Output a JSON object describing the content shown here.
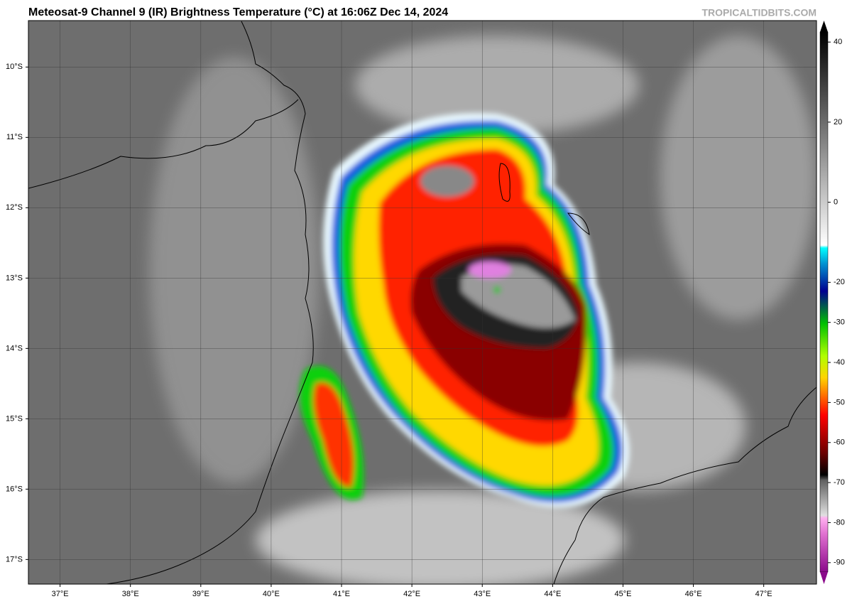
{
  "title": "Meteosat-9 Channel 9 (IR) Brightness Temperature (°C) at 16:06Z Dec 14, 2024",
  "watermark": "TROPICALTIDBITS.COM",
  "map": {
    "xlim": [
      36.55,
      47.75
    ],
    "ylim": [
      -17.35,
      -9.34
    ],
    "grid": true,
    "xticks": [
      {
        "value": 37,
        "label": "37°E"
      },
      {
        "value": 38,
        "label": "38°E"
      },
      {
        "value": 39,
        "label": "39°E"
      },
      {
        "value": 40,
        "label": "40°E"
      },
      {
        "value": 41,
        "label": "41°E"
      },
      {
        "value": 42,
        "label": "42°E"
      },
      {
        "value": 43,
        "label": "43°E"
      },
      {
        "value": 44,
        "label": "44°E"
      },
      {
        "value": 45,
        "label": "45°E"
      },
      {
        "value": 46,
        "label": "46°E"
      },
      {
        "value": 47,
        "label": "47°E"
      }
    ],
    "yticks": [
      {
        "value": -10,
        "label": "10°S"
      },
      {
        "value": -11,
        "label": "11°S"
      },
      {
        "value": -12,
        "label": "12°S"
      },
      {
        "value": -13,
        "label": "13°S"
      },
      {
        "value": -14,
        "label": "14°S"
      },
      {
        "value": -15,
        "label": "15°S"
      },
      {
        "value": -16,
        "label": "16°S"
      },
      {
        "value": -17,
        "label": "17°S"
      }
    ]
  },
  "colorbar": {
    "lim": [
      -95,
      45
    ],
    "ticks": [
      40,
      20,
      0,
      -20,
      -30,
      -40,
      -50,
      -60,
      -70,
      -80,
      -90
    ]
  }
}
